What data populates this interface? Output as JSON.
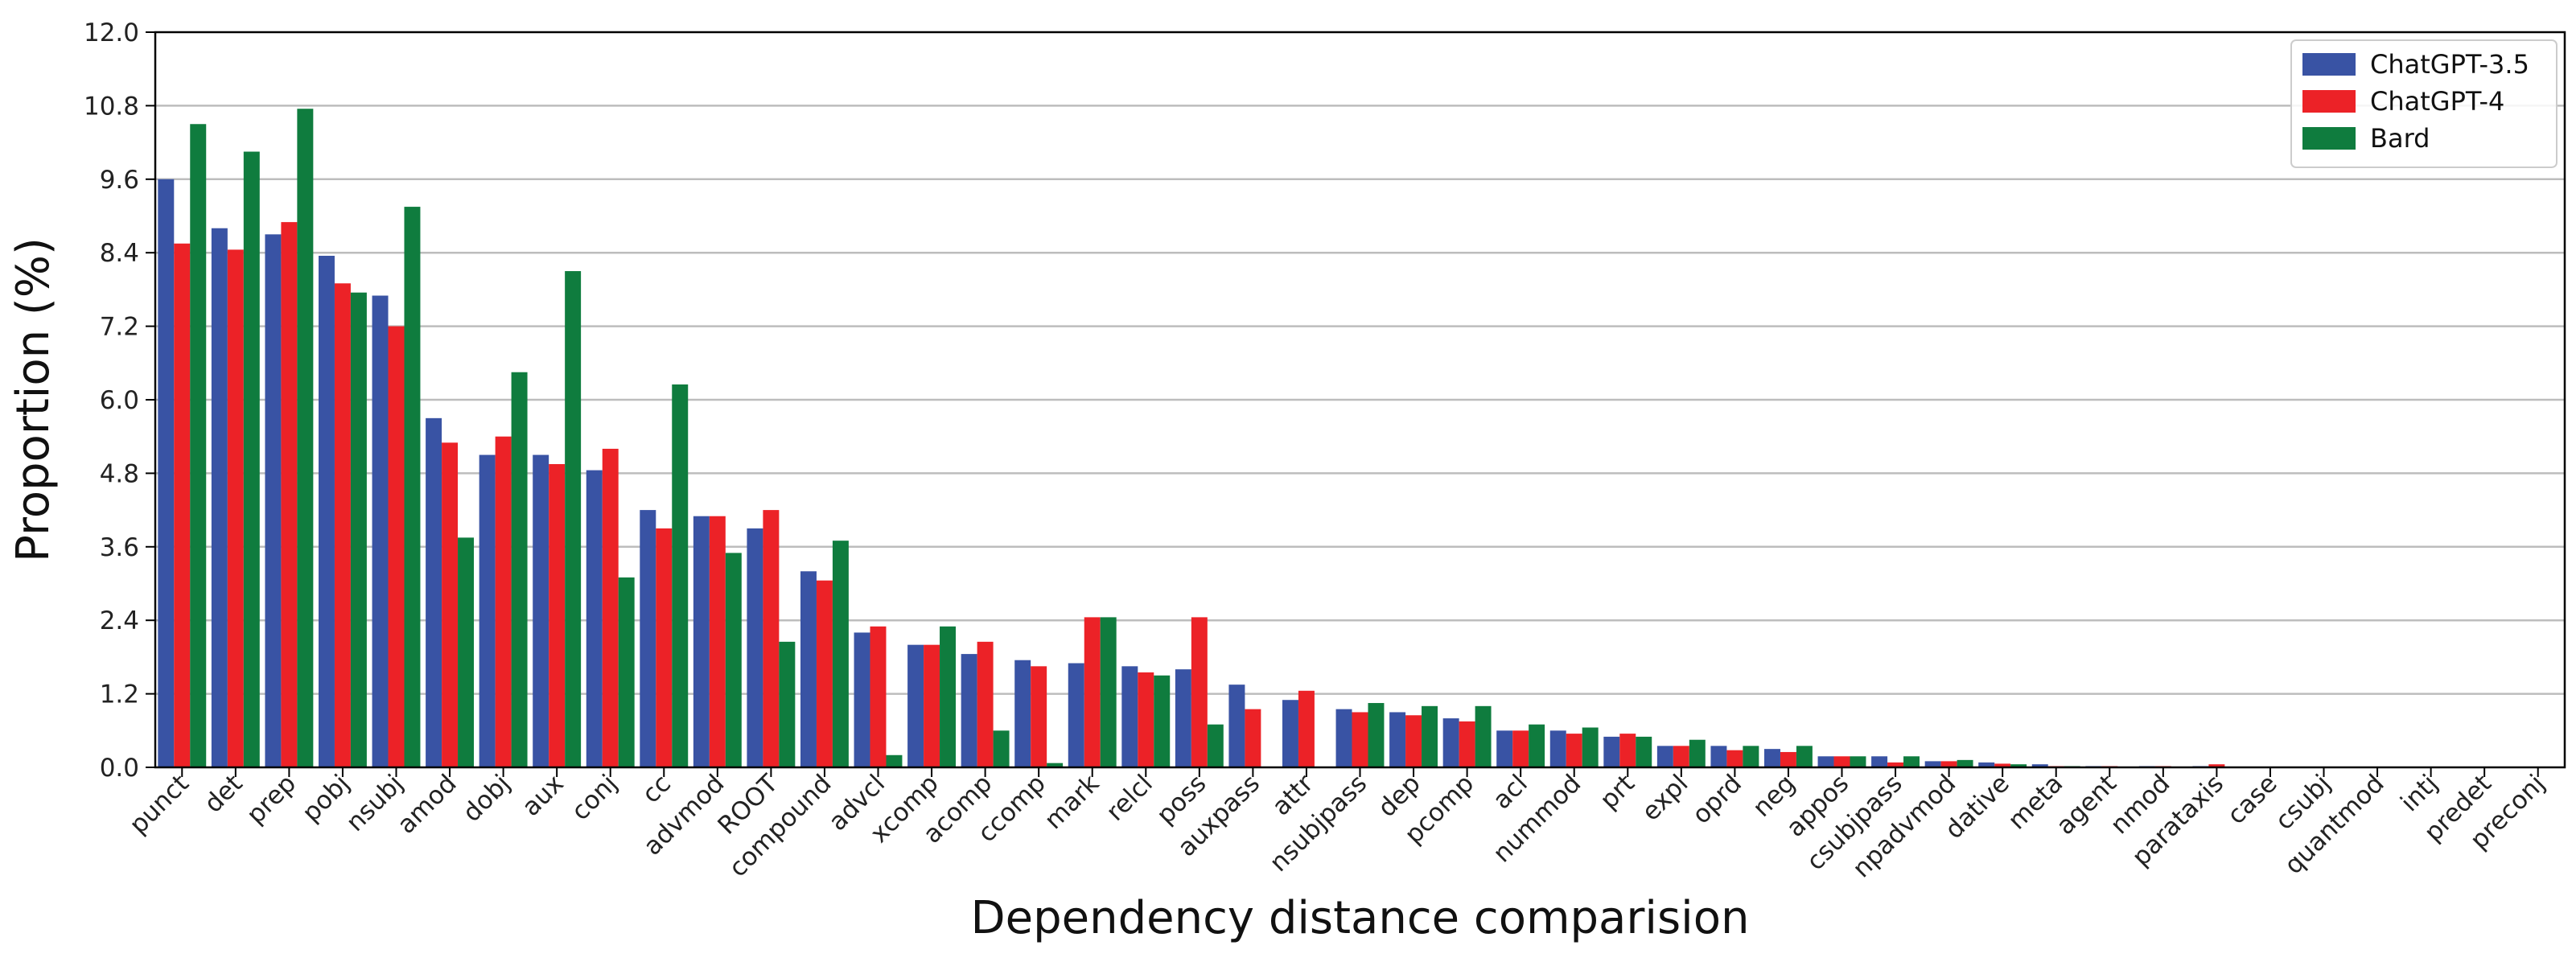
{
  "chart_data": {
    "type": "bar",
    "title": "",
    "xlabel": "Dependency distance comparision",
    "ylabel": "Proportion (%)",
    "ylim": [
      0,
      12.0
    ],
    "yticks": [
      0.0,
      1.2,
      2.4,
      3.6,
      4.8,
      6.0,
      7.2,
      8.4,
      9.6,
      10.8,
      12.0
    ],
    "grid": "horizontal",
    "legend_position": "top-right",
    "categories": [
      "punct",
      "det",
      "prep",
      "pobj",
      "nsubj",
      "amod",
      "dobj",
      "aux",
      "conj",
      "cc",
      "advmod",
      "ROOT",
      "compound",
      "advcl",
      "xcomp",
      "acomp",
      "ccomp",
      "mark",
      "relcl",
      "poss",
      "auxpass",
      "attr",
      "nsubjpass",
      "dep",
      "pcomp",
      "acl",
      "nummod",
      "prt",
      "expl",
      "oprd",
      "neg",
      "appos",
      "csubjpass",
      "npadvmod",
      "dative",
      "meta",
      "agent",
      "nmod",
      "parataxis",
      "case",
      "csubj",
      "quantmod",
      "intj",
      "predet",
      "preconj"
    ],
    "series": [
      {
        "name": "ChatGPT-3.5",
        "color": "#3953a4",
        "values": [
          9.6,
          8.8,
          8.7,
          8.35,
          7.7,
          5.7,
          5.1,
          5.1,
          4.85,
          4.2,
          4.1,
          3.9,
          3.2,
          2.2,
          2.0,
          1.85,
          1.75,
          1.7,
          1.65,
          1.6,
          1.35,
          1.1,
          0.95,
          0.9,
          0.8,
          0.6,
          0.6,
          0.5,
          0.35,
          0.35,
          0.3,
          0.18,
          0.18,
          0.1,
          0.08,
          0.05,
          0.02,
          0.02,
          0.02,
          0.01,
          0.01,
          0.01,
          0.01,
          0.01,
          0.01
        ]
      },
      {
        "name": "ChatGPT-4",
        "color": "#ec2227",
        "values": [
          8.55,
          8.45,
          8.9,
          7.9,
          7.2,
          5.3,
          5.4,
          4.95,
          5.2,
          3.9,
          4.1,
          4.2,
          3.05,
          2.3,
          2.0,
          2.05,
          1.65,
          2.45,
          1.55,
          2.45,
          0.95,
          1.25,
          0.9,
          0.85,
          0.75,
          0.6,
          0.55,
          0.55,
          0.35,
          0.28,
          0.25,
          0.18,
          0.08,
          0.1,
          0.06,
          0.02,
          0.02,
          0.02,
          0.05,
          0.01,
          0.01,
          0.01,
          0.01,
          0.01,
          0.01
        ]
      },
      {
        "name": "Bard",
        "color": "#0f7c3e",
        "values": [
          10.5,
          10.05,
          10.75,
          7.75,
          9.15,
          3.75,
          6.45,
          8.1,
          3.1,
          6.25,
          3.5,
          2.05,
          3.7,
          0.2,
          2.3,
          0.6,
          0.07,
          2.45,
          1.5,
          0.7,
          0.0,
          0.0,
          1.05,
          1.0,
          1.0,
          0.7,
          0.65,
          0.5,
          0.45,
          0.35,
          0.35,
          0.18,
          0.18,
          0.12,
          0.05,
          0.02,
          0.0,
          0.0,
          0.0,
          0.0,
          0.0,
          0.0,
          0.0,
          0.0,
          0.0
        ]
      }
    ]
  }
}
